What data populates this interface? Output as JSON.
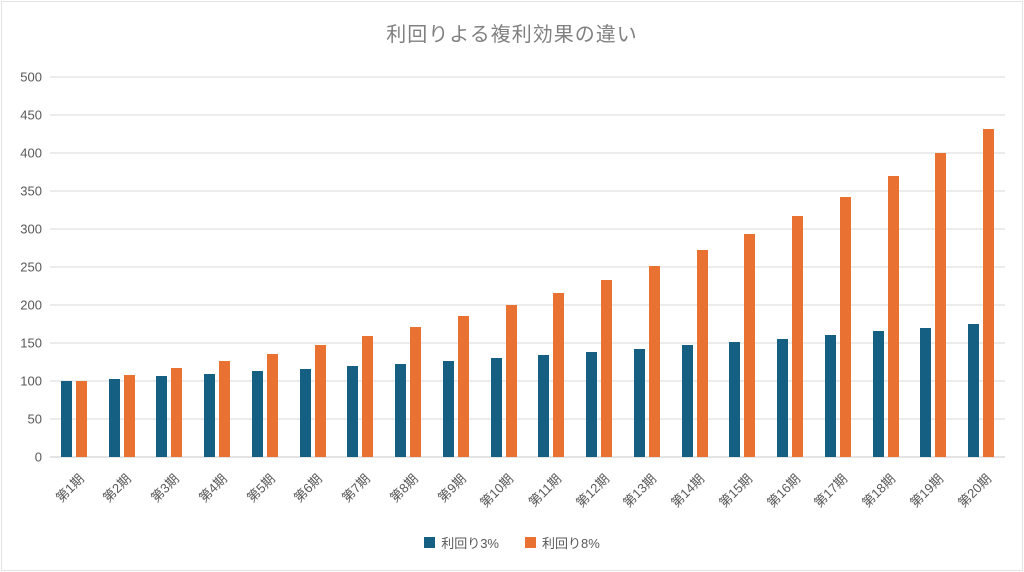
{
  "chart_data": {
    "type": "bar",
    "title": "利回りよる複利効果の違い",
    "categories": [
      "第1期",
      "第2期",
      "第3期",
      "第4期",
      "第5期",
      "第6期",
      "第7期",
      "第8期",
      "第9期",
      "第10期",
      "第11期",
      "第12期",
      "第13期",
      "第14期",
      "第15期",
      "第16期",
      "第17期",
      "第18期",
      "第19期",
      "第20期"
    ],
    "series": [
      {
        "name": "利回り3%",
        "color": "#156082",
        "values": [
          100,
          103,
          106.09,
          109.27,
          112.55,
          115.93,
          119.41,
          122.99,
          126.68,
          130.48,
          134.39,
          138.42,
          142.58,
          146.85,
          151.26,
          155.8,
          160.47,
          165.28,
          170.24,
          175.35
        ]
      },
      {
        "name": "利回り8%",
        "color": "#E97132",
        "values": [
          100,
          108,
          116.64,
          125.97,
          136.05,
          146.93,
          158.69,
          171.38,
          185.09,
          199.9,
          215.89,
          233.16,
          251.82,
          271.96,
          293.72,
          317.22,
          342.59,
          370,
          399.6,
          431.57
        ]
      }
    ],
    "xlabel": "",
    "ylabel": "",
    "ylim": [
      0,
      500
    ],
    "yticks": [
      0,
      50,
      100,
      150,
      200,
      250,
      300,
      350,
      400,
      450,
      500
    ],
    "grid": true,
    "legend_position": "bottom",
    "title_color": "#808080",
    "axis_text_color": "#595959",
    "gridline_color": "#d9d9d9",
    "axis_line_color": "#c8c8c8"
  }
}
